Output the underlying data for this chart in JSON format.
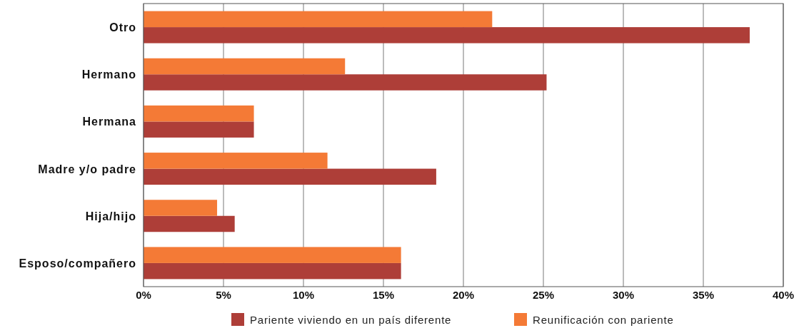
{
  "chart_data": {
    "type": "bar",
    "orientation": "horizontal",
    "categories": [
      "Otro",
      "Hermano",
      "Hermana",
      "Madre y/o padre",
      "Hija/hijo",
      "Esposo/compañero"
    ],
    "series": [
      {
        "name": "Pariente viviendo en un país diferente",
        "color": "#ae3e38",
        "values": [
          37.9,
          25.2,
          6.9,
          18.3,
          5.7,
          16.1
        ]
      },
      {
        "name": "Reunificación con pariente",
        "color": "#f47a36",
        "values": [
          21.8,
          12.6,
          6.9,
          11.5,
          4.6,
          16.1
        ]
      }
    ],
    "xlim": [
      0,
      40
    ],
    "xticks": [
      {
        "value": 0,
        "label": "0%"
      },
      {
        "value": 5,
        "label": "5%"
      },
      {
        "value": 10,
        "label": "10%"
      },
      {
        "value": 15,
        "label": "15%"
      },
      {
        "value": 20,
        "label": "20%"
      },
      {
        "value": 25,
        "label": "25%"
      },
      {
        "value": 30,
        "label": "30%"
      },
      {
        "value": 35,
        "label": "35%"
      },
      {
        "value": 40,
        "label": "40%"
      }
    ],
    "grid": "x",
    "legend": "bottom"
  }
}
